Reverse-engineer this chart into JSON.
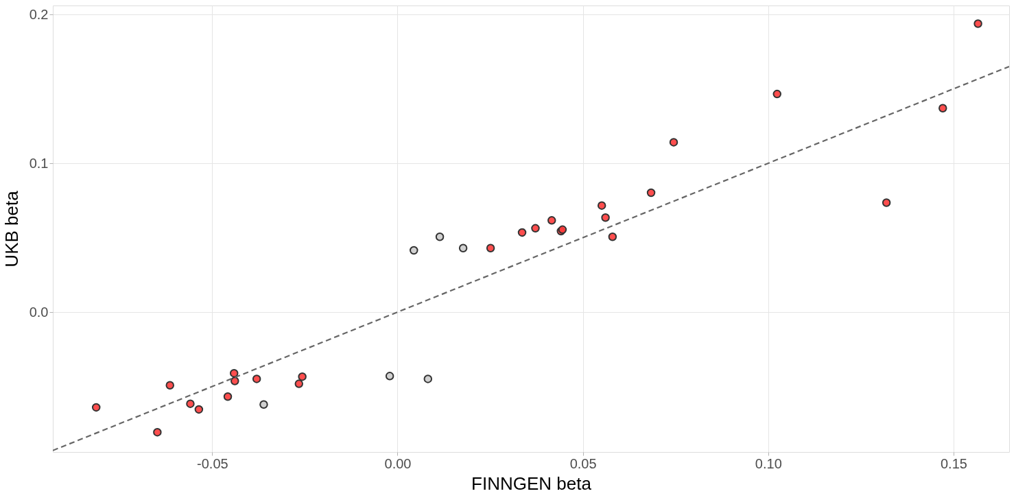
{
  "chart_data": {
    "type": "scatter",
    "xlabel": "FINNGEN beta",
    "ylabel": "UKB beta",
    "xlim": [
      -0.093,
      0.165
    ],
    "ylim": [
      -0.094,
      0.206
    ],
    "xticks": [
      {
        "value": -0.05,
        "label": "-0.05"
      },
      {
        "value": 0,
        "label": "0.00"
      },
      {
        "value": 0.05,
        "label": "0.05"
      },
      {
        "value": 0.1,
        "label": "0.10"
      },
      {
        "value": 0.15,
        "label": "0.15"
      }
    ],
    "yticks": [
      {
        "value": 0,
        "label": "0.0"
      },
      {
        "value": 0.1,
        "label": "0.1"
      },
      {
        "value": 0.2,
        "label": "0.2"
      }
    ],
    "grid": true,
    "marker": "circle",
    "series": [
      {
        "color": "#ff3b3b",
        "x": [
          -0.0813,
          -0.0648,
          -0.0614,
          -0.0559,
          -0.0536,
          -0.0458,
          -0.0441,
          -0.0439,
          -0.038,
          -0.0266,
          -0.0257,
          0.0251,
          0.0336,
          0.0372,
          0.0416,
          0.0441,
          0.0445,
          0.0551,
          0.0561,
          0.058,
          0.0684,
          0.0745,
          0.1024,
          0.1319,
          0.1471,
          0.1566
        ],
        "values": [
          -0.064,
          -0.0807,
          -0.0492,
          -0.0616,
          -0.0654,
          -0.0568,
          -0.0411,
          -0.0463,
          -0.0449,
          -0.0482,
          -0.0434,
          0.043,
          0.0535,
          0.0563,
          0.0616,
          0.0544,
          0.0554,
          0.0716,
          0.0635,
          0.0506,
          0.0802,
          0.1141,
          0.1465,
          0.0735,
          0.137,
          0.1938
        ]
      },
      {
        "color": "#cccccc",
        "x": [
          -0.0361,
          -0.0021,
          0.0044,
          0.0082,
          0.0114,
          0.0177
        ],
        "values": [
          -0.0621,
          -0.043,
          0.0415,
          -0.0449,
          0.0506,
          0.043
        ]
      },
      {
        "type": "line",
        "color": "#666666",
        "line_style": "dashed",
        "marker": "none",
        "x": [
          -0.093,
          0.165
        ],
        "values": [
          -0.093,
          0.165
        ]
      }
    ]
  }
}
